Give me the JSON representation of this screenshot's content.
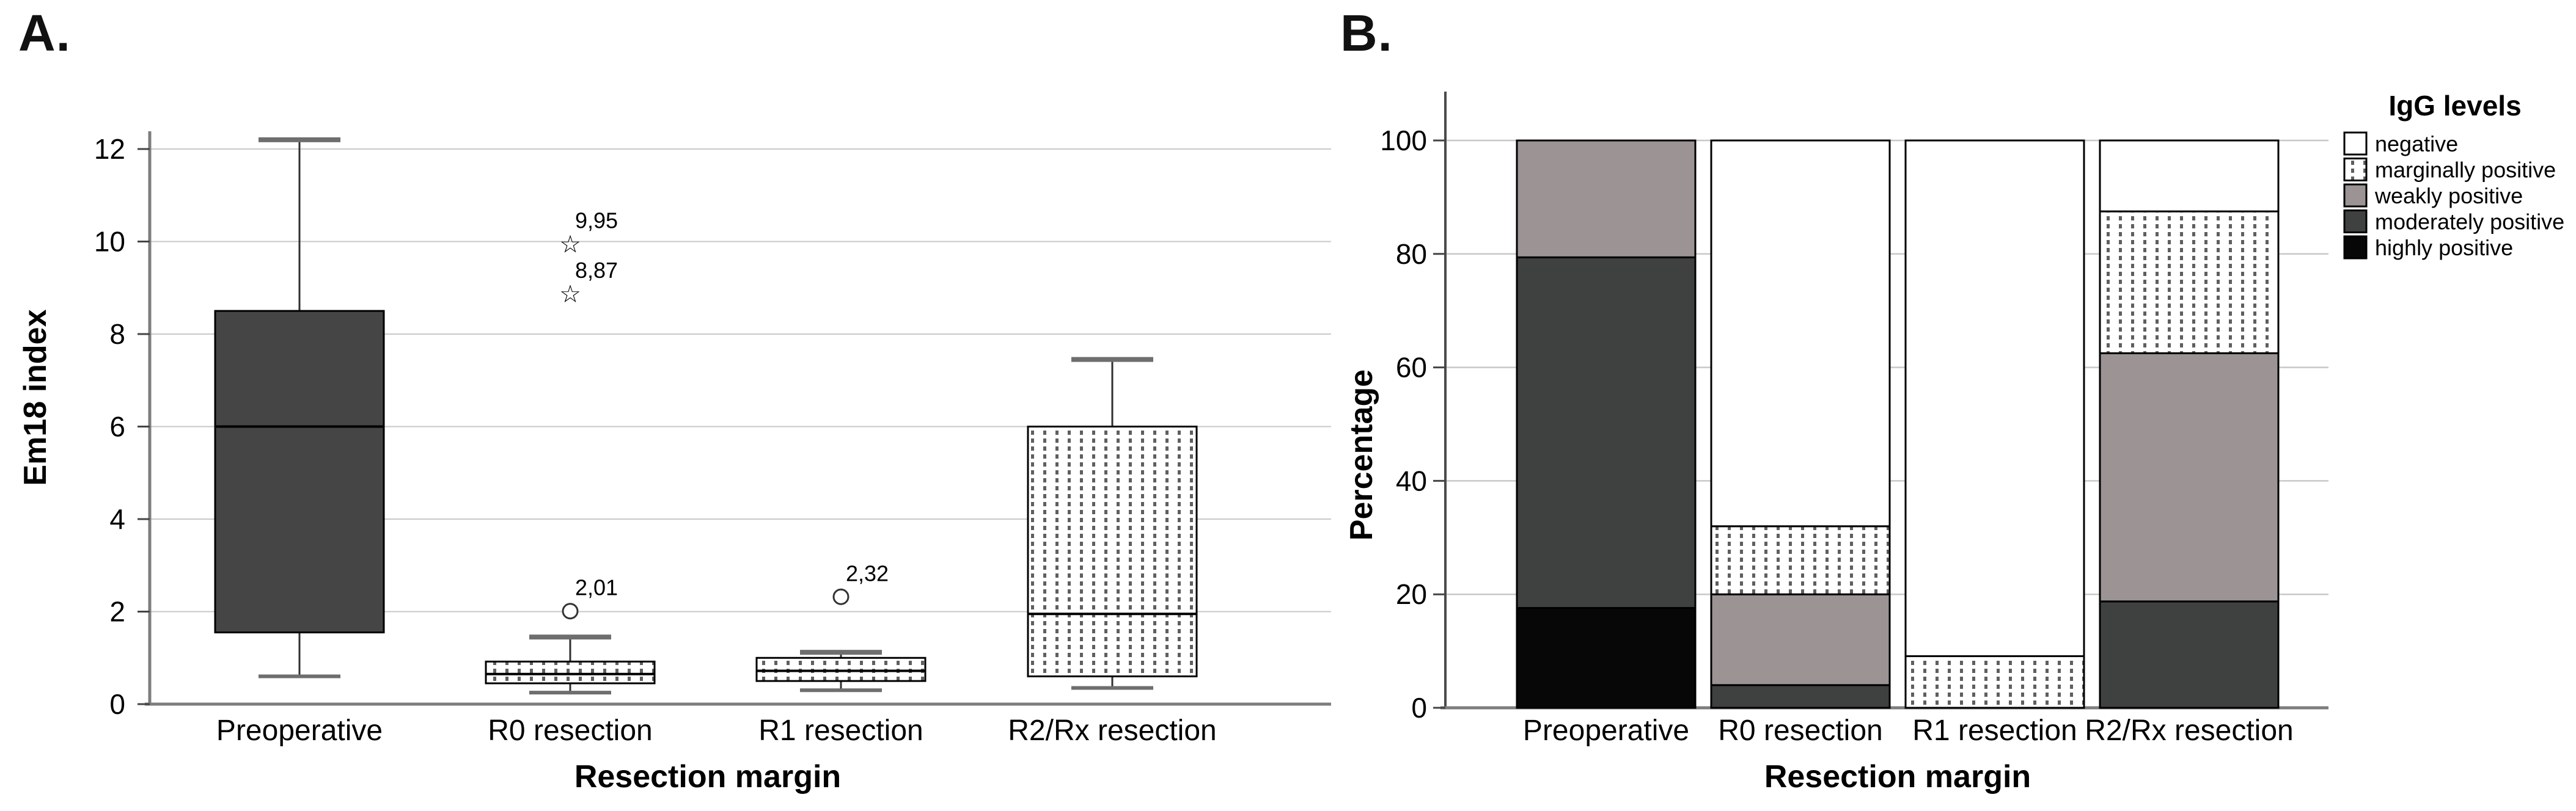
{
  "figure": {
    "panel_a_label": "A.",
    "panel_b_label": "B.",
    "background": "#ffffff"
  },
  "chart_data": [
    {
      "type": "box",
      "panel": "A",
      "ylabel": "Em18 index",
      "xlabel": "Resection margin",
      "ylim": [
        0,
        12.8
      ],
      "yticks": [
        0,
        2,
        4,
        6,
        8,
        10,
        12
      ],
      "grid": "horizontal",
      "decimal_separator": ",",
      "categories": [
        "Preoperative",
        "R0 resection",
        "R1 resection",
        "R2/Rx resection"
      ],
      "boxes": [
        {
          "category": "Preoperative",
          "whisker_low": 0.6,
          "q1": 1.55,
          "median": 6.0,
          "q3": 8.5,
          "whisker_high": 12.2,
          "fill_style": "solid-dark",
          "outliers": []
        },
        {
          "category": "R0 resection",
          "whisker_low": 0.25,
          "q1": 0.45,
          "median": 0.65,
          "q3": 0.92,
          "whisker_high": 1.45,
          "fill_style": "dotted",
          "outliers": [
            {
              "value": 2.01,
              "label": "2,01",
              "marker": "circle"
            },
            {
              "value": 8.87,
              "label": "8,87",
              "marker": "star"
            },
            {
              "value": 9.95,
              "label": "9,95",
              "marker": "star"
            }
          ]
        },
        {
          "category": "R1 resection",
          "whisker_low": 0.3,
          "q1": 0.5,
          "median": 0.72,
          "q3": 1.0,
          "whisker_high": 1.12,
          "fill_style": "dotted",
          "outliers": [
            {
              "value": 2.32,
              "label": "2,32",
              "marker": "circle"
            }
          ]
        },
        {
          "category": "R2/Rx resection",
          "whisker_low": 0.35,
          "q1": 0.6,
          "median": 1.95,
          "q3": 6.0,
          "whisker_high": 7.45,
          "fill_style": "dotted",
          "outliers": []
        }
      ]
    },
    {
      "type": "stacked_bar",
      "panel": "B",
      "ylabel": "Percentage",
      "xlabel": "Resection margin",
      "ylim": [
        0,
        100
      ],
      "yticks": [
        0,
        20,
        40,
        60,
        80,
        100
      ],
      "grid": "horizontal",
      "categories": [
        "Preoperative",
        "R0 resection",
        "R1 resection",
        "R2/Rx resection"
      ],
      "legend": {
        "title": "IgG levels",
        "items": [
          {
            "label": "negative",
            "style": "negative"
          },
          {
            "label": "marginally positive",
            "style": "marginal"
          },
          {
            "label": "weakly positive",
            "style": "weak"
          },
          {
            "label": "moderately positive",
            "style": "moderate"
          },
          {
            "label": "highly positive",
            "style": "high"
          }
        ]
      },
      "series": [
        {
          "name": "highly positive",
          "style": "high",
          "values": [
            17.6,
            0,
            0,
            0
          ]
        },
        {
          "name": "moderately positive",
          "style": "moderate",
          "values": [
            61.8,
            4,
            0,
            18.75
          ]
        },
        {
          "name": "weakly positive",
          "style": "weak",
          "values": [
            20.6,
            16,
            0,
            43.75
          ]
        },
        {
          "name": "marginally positive",
          "style": "marginal",
          "values": [
            0,
            12,
            9.1,
            25
          ]
        },
        {
          "name": "negative",
          "style": "negative",
          "values": [
            0,
            68,
            90.9,
            12.5
          ]
        }
      ]
    }
  ],
  "colors": {
    "solid_dark_box": "#454545",
    "high": "#070707",
    "moderate": "#3f4040",
    "weak": "#9b9394",
    "negative": "#ffffff",
    "pattern_dot": "#5f5f5f",
    "grid": "#c8c8c8",
    "axis": "#7d7d7d",
    "border": "#000000",
    "whisker": "#303030",
    "cap": "#6e6e6e",
    "text": "#000000"
  }
}
